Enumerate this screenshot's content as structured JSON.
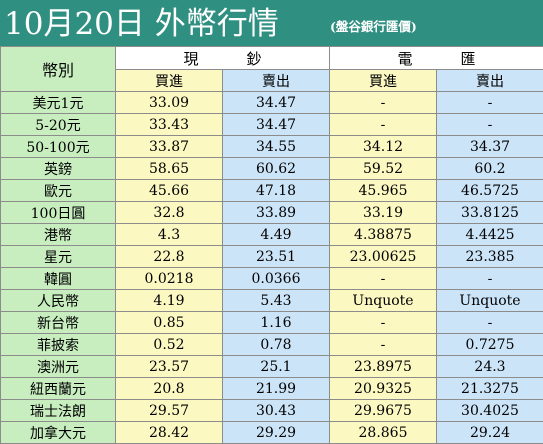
{
  "header": {
    "title": "10月20日 外幣行情",
    "subtitle": "(盤谷銀行匯價)"
  },
  "columns": {
    "label": "幣別",
    "cash": {
      "left": "現",
      "right": "鈔"
    },
    "remit": {
      "left": "電",
      "right": "匯"
    },
    "buy": "買進",
    "sell": "賣出"
  },
  "colors": {
    "header_bg": "#2f8f81",
    "label_bg": "#c8eec0",
    "buy_bg": "#fbf8c2",
    "sell_bg": "#cce4f8"
  },
  "rows": [
    {
      "name": "美元1元",
      "cash_buy": "33.09",
      "cash_sell": "34.47",
      "remit_buy": "-",
      "remit_sell": "-"
    },
    {
      "name": "5-20元",
      "cash_buy": "33.43",
      "cash_sell": "34.47",
      "remit_buy": "-",
      "remit_sell": "-"
    },
    {
      "name": "50-100元",
      "cash_buy": "33.87",
      "cash_sell": "34.55",
      "remit_buy": "34.12",
      "remit_sell": "34.37"
    },
    {
      "name": "英鎊",
      "cash_buy": "58.65",
      "cash_sell": "60.62",
      "remit_buy": "59.52",
      "remit_sell": "60.2"
    },
    {
      "name": "歐元",
      "cash_buy": "45.66",
      "cash_sell": "47.18",
      "remit_buy": "45.965",
      "remit_sell": "46.5725"
    },
    {
      "name": "100日圓",
      "cash_buy": "32.8",
      "cash_sell": "33.89",
      "remit_buy": "33.19",
      "remit_sell": "33.8125"
    },
    {
      "name": "港幣",
      "cash_buy": "4.3",
      "cash_sell": "4.49",
      "remit_buy": "4.38875",
      "remit_sell": "4.4425"
    },
    {
      "name": "星元",
      "cash_buy": "22.8",
      "cash_sell": "23.51",
      "remit_buy": "23.00625",
      "remit_sell": "23.385"
    },
    {
      "name": "韓圓",
      "cash_buy": "0.0218",
      "cash_sell": "0.0366",
      "remit_buy": "-",
      "remit_sell": "-"
    },
    {
      "name": "人民幣",
      "cash_buy": "4.19",
      "cash_sell": "5.43",
      "remit_buy": "Unquote",
      "remit_sell": "Unquote"
    },
    {
      "name": "新台幣",
      "cash_buy": "0.85",
      "cash_sell": "1.16",
      "remit_buy": "-",
      "remit_sell": "-"
    },
    {
      "name": "菲披索",
      "cash_buy": "0.52",
      "cash_sell": "0.78",
      "remit_buy": "-",
      "remit_sell": "0.7275"
    },
    {
      "name": "澳洲元",
      "cash_buy": "23.57",
      "cash_sell": "25.1",
      "remit_buy": "23.8975",
      "remit_sell": "24.3"
    },
    {
      "name": "紐西蘭元",
      "cash_buy": "20.8",
      "cash_sell": "21.99",
      "remit_buy": "20.9325",
      "remit_sell": "21.3275"
    },
    {
      "name": "瑞士法朗",
      "cash_buy": "29.57",
      "cash_sell": "30.43",
      "remit_buy": "29.9675",
      "remit_sell": "30.4025"
    },
    {
      "name": "加拿大元",
      "cash_buy": "28.42",
      "cash_sell": "29.29",
      "remit_buy": "28.865",
      "remit_sell": "29.24"
    }
  ]
}
